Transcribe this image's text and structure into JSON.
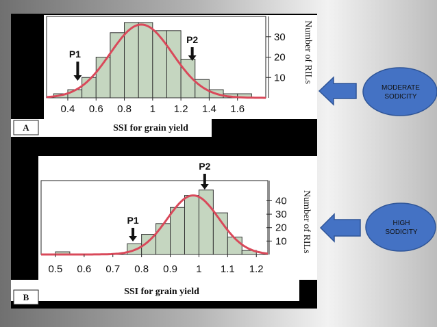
{
  "chart_data": [
    {
      "type": "bar",
      "panel_letter": "A",
      "xlabel": "SSI for grain yield",
      "ylabel": "Number of RILs",
      "x_ticks": [
        "0.4",
        "0.6",
        "0.8",
        "1",
        "1.2",
        "1.4",
        "1.6"
      ],
      "y_ticks": [
        "10",
        "20",
        "30"
      ],
      "xlim": [
        0.25,
        1.8
      ],
      "ylim": [
        0,
        40
      ],
      "bin_starts": [
        0.3,
        0.4,
        0.5,
        0.6,
        0.7,
        0.8,
        0.9,
        1.0,
        1.1,
        1.2,
        1.3,
        1.4,
        1.5,
        1.6
      ],
      "bin_width": 0.1,
      "values": [
        2,
        4,
        10,
        20,
        32,
        37,
        37,
        33,
        33,
        19,
        9,
        4,
        2,
        2
      ],
      "curve": {
        "mean": 0.92,
        "sd": 0.22,
        "peak": 36
      },
      "annotations": [
        {
          "label": "P1",
          "x": 0.47
        },
        {
          "label": "P2",
          "x": 1.28
        }
      ],
      "callout": "MODERATE SODICITY"
    },
    {
      "type": "bar",
      "panel_letter": "B",
      "xlabel": "SSI for grain yield",
      "ylabel": "Number of RILs",
      "x_ticks": [
        "0.5",
        "0.6",
        "0.7",
        "0.8",
        "0.9",
        "1",
        "1.1",
        "1.2"
      ],
      "y_ticks": [
        "10",
        "20",
        "30",
        "40"
      ],
      "xlim": [
        0.45,
        1.24
      ],
      "ylim": [
        0,
        55
      ],
      "bin_starts": [
        0.5,
        0.75,
        0.8,
        0.85,
        0.9,
        0.95,
        1.0,
        1.05,
        1.1,
        1.15
      ],
      "bin_width": 0.05,
      "values": [
        2,
        8,
        15,
        23,
        35,
        44,
        48,
        31,
        13,
        3
      ],
      "curve": {
        "mean": 0.98,
        "sd": 0.09,
        "peak": 44
      },
      "annotations": [
        {
          "label": "P1",
          "x": 0.77
        },
        {
          "label": "P2",
          "x": 1.02
        }
      ],
      "callout": "HIGH SODICITY"
    }
  ],
  "colors": {
    "bar_fill": "#c5d6c0",
    "bar_stroke": "#333333",
    "curve": "#d9495a",
    "arrow_fill": "#4472c4",
    "callout_fill": "#4472c4",
    "panel_bg": "#000000"
  }
}
